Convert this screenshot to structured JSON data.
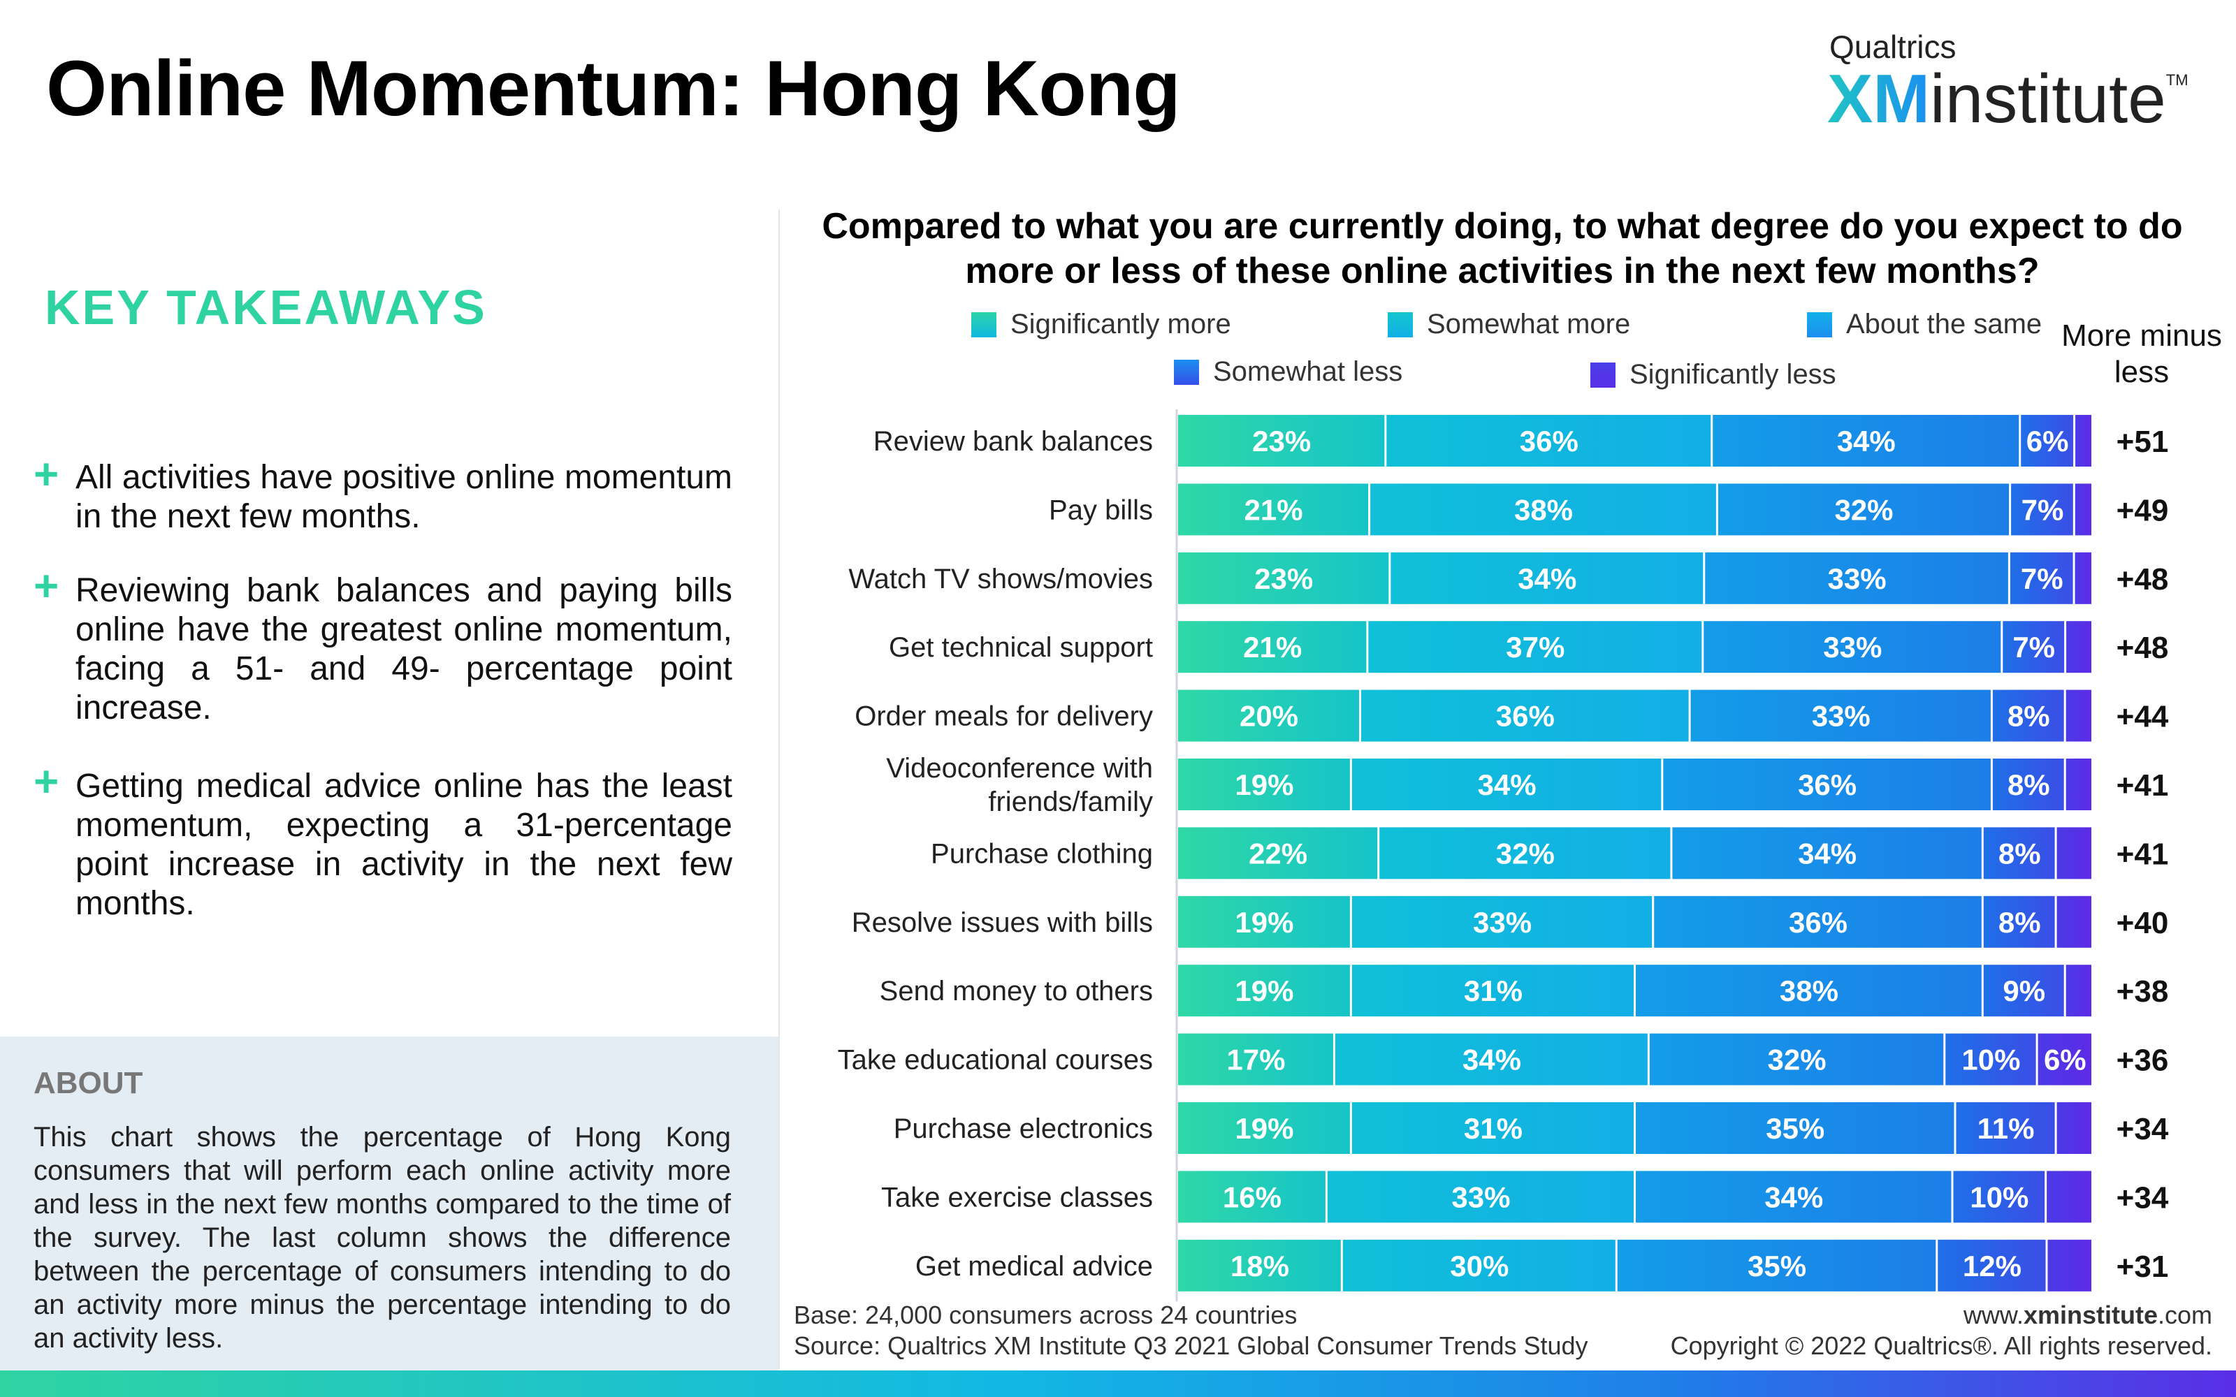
{
  "header": {
    "title": "Online Momentum: Hong Kong",
    "brand_top": "Qualtrics",
    "brand_xm": "XM",
    "brand_institute": "institute",
    "brand_tm": "TM"
  },
  "takeaways": {
    "heading": "KEY TAKEAWAYS",
    "items": [
      "All activities have positive online momentum in the next few months.",
      "Reviewing bank balances and paying bills online have the greatest online momentum, facing a 51- and 49- percentage point increase.",
      "Getting medical advice online has the least momentum, expecting a 31-percentage point increase in activity in the next few months."
    ],
    "bullet_symbol": "+"
  },
  "about": {
    "heading": "ABOUT",
    "text": "This chart shows the percentage of Hong Kong consumers that will perform each online activity more and less in the next few months compared to the time of the survey. The last column shows the difference between the percentage of consumers intending to do an activity more minus the percentage intending to do an activity less."
  },
  "footer": {
    "base": "Base: 24,000 consumers across 24 countries",
    "source": "Source: Qualtrics XM Institute Q3 2021 Global Consumer Trends Study",
    "url_prefix": "www.",
    "url_bold": "xminstitute",
    "url_suffix": ".com",
    "copyright": "Copyright © 2022 Qualtrics®. All rights reserved."
  },
  "colors": {
    "significantly_more": "#2dd4a8",
    "somewhat_more": "#10b8e2",
    "about_same": "#1c8ef0",
    "somewhat_less": "#2e5fe6",
    "significantly_less": "#5a2ee6",
    "accent": "#2fd3a2"
  },
  "chart_data": {
    "type": "bar",
    "orientation": "horizontal",
    "stacked": true,
    "title": "Compared to what you are currently doing, to what degree do you expect to do more or less of these online activities in the next few months?",
    "diff_column_label": "More minus less",
    "categories": [
      "Review bank balances",
      "Pay bills",
      "Watch TV shows/movies",
      "Get technical support",
      "Order meals for delivery",
      "Videoconference with friends/family",
      "Purchase clothing",
      "Resolve issues with bills",
      "Send money to others",
      "Take educational courses",
      "Purchase electronics",
      "Take exercise classes",
      "Get medical advice"
    ],
    "series": [
      {
        "name": "Significantly more",
        "values": [
          23,
          21,
          23,
          21,
          20,
          19,
          22,
          19,
          19,
          17,
          19,
          16,
          18
        ]
      },
      {
        "name": "Somewhat more",
        "values": [
          36,
          38,
          34,
          37,
          36,
          34,
          32,
          33,
          31,
          34,
          31,
          33,
          30
        ]
      },
      {
        "name": "About the same",
        "values": [
          34,
          32,
          33,
          33,
          33,
          36,
          34,
          36,
          38,
          32,
          35,
          34,
          35
        ]
      },
      {
        "name": "Somewhat less",
        "values": [
          6,
          7,
          7,
          7,
          8,
          8,
          8,
          8,
          9,
          10,
          11,
          10,
          12
        ]
      },
      {
        "name": "Significantly less",
        "values": [
          2,
          2,
          2,
          3,
          3,
          3,
          4,
          4,
          3,
          6,
          4,
          5,
          5
        ]
      }
    ],
    "value_labels_visible": [
      [
        true,
        true,
        true,
        true,
        false
      ],
      [
        true,
        true,
        true,
        true,
        false
      ],
      [
        true,
        true,
        true,
        true,
        false
      ],
      [
        true,
        true,
        true,
        true,
        false
      ],
      [
        true,
        true,
        true,
        true,
        false
      ],
      [
        true,
        true,
        true,
        true,
        false
      ],
      [
        true,
        true,
        true,
        true,
        false
      ],
      [
        true,
        true,
        true,
        true,
        false
      ],
      [
        true,
        true,
        true,
        true,
        false
      ],
      [
        true,
        true,
        true,
        true,
        true
      ],
      [
        true,
        true,
        true,
        true,
        false
      ],
      [
        true,
        true,
        true,
        true,
        false
      ],
      [
        true,
        true,
        true,
        true,
        false
      ]
    ],
    "value_suffix": "%",
    "more_minus_less": [
      "+51",
      "+49",
      "+48",
      "+48",
      "+44",
      "+41",
      "+41",
      "+40",
      "+38",
      "+36",
      "+34",
      "+34",
      "+31"
    ],
    "xlim": [
      0,
      100
    ],
    "grid": false,
    "legend_position": "top"
  }
}
